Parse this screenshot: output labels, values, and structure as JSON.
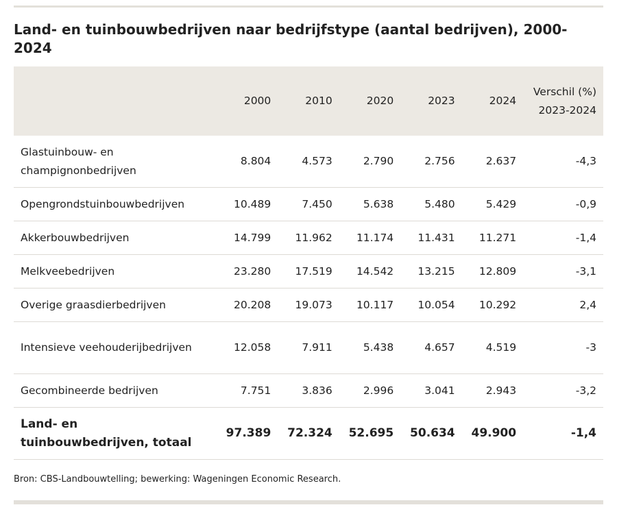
{
  "title": "Land- en tuinbouwbedrijven naar bedrijfstype (aantal bedrijven), 2000-2024",
  "table": {
    "headers": [
      "",
      "2000",
      "2010",
      "2020",
      "2023",
      "2024",
      "Verschil (%) 2023-2024"
    ],
    "rows": [
      [
        "Glastuinbouw- en champignonbedrijven",
        "8.804",
        "4.573",
        "2.790",
        "2.756",
        "2.637",
        "-4,3"
      ],
      [
        "Opengrondstuinbouwbedrijven",
        "10.489",
        "7.450",
        "5.638",
        "5.480",
        "5.429",
        "-0,9"
      ],
      [
        "Akkerbouwbedrijven",
        "14.799",
        "11.962",
        "11.174",
        "11.431",
        "11.271",
        "-1,4"
      ],
      [
        "Melkveebedrijven",
        "23.280",
        "17.519",
        "14.542",
        "13.215",
        "12.809",
        "-3,1"
      ],
      [
        "Overige graasdierbedrijven",
        "20.208",
        "19.073",
        "10.117",
        "10.054",
        "10.292",
        "2,4"
      ],
      [
        "Intensieve veehouderijbedrijven",
        "12.058",
        "7.911",
        "5.438",
        "4.657",
        "4.519",
        "-3"
      ],
      [
        "Gecombineerde bedrijven",
        "7.751",
        "3.836",
        "2.996",
        "3.041",
        "2.943",
        "-3,2"
      ]
    ],
    "total": [
      "Land- en tuinbouwbedrijven, totaal",
      "97.389",
      "72.324",
      "52.695",
      "50.634",
      "49.900",
      "-1,4"
    ]
  },
  "source": "Bron: CBS-Landbouwtelling; bewerking: Wageningen Economic Research."
}
